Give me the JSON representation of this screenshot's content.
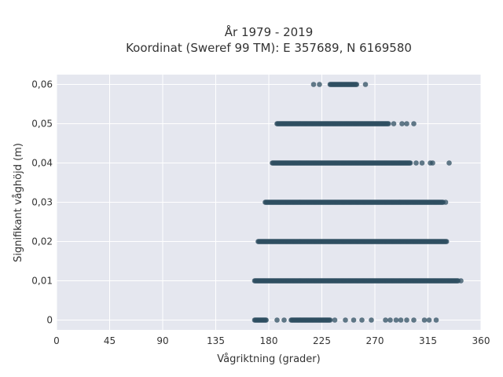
{
  "chart_data": {
    "type": "scatter",
    "title": "År 1979 - 2019",
    "subtitle": "Koordinat (Sweref 99 TM): E 357689, N 6169580",
    "xlabel": "Vågriktning (grader)",
    "ylabel": "Signifikant våghöjd (m)",
    "xlim": [
      0,
      360
    ],
    "ylim": [
      -0.0025,
      0.0625
    ],
    "xticks": [
      0,
      45,
      90,
      135,
      180,
      225,
      270,
      315,
      360
    ],
    "yticks": [
      0,
      0.01,
      0.02,
      0.03,
      0.04,
      0.05,
      0.06
    ],
    "ytick_labels": [
      "0",
      "0,01",
      "0,02",
      "0,03",
      "0,04",
      "0,05",
      "0,06"
    ],
    "grid": true,
    "legend": "none",
    "colors": {
      "point": "#2f4f62",
      "plot_bg": "#e5e7ef",
      "grid": "#ffffff"
    },
    "series": [
      {
        "values_by_height": [
          {
            "y": 0.06,
            "dense": [
              [
                232,
                255
              ]
            ],
            "sparse": [
              218,
              223,
              262
            ]
          },
          {
            "y": 0.05,
            "dense": [
              [
                187,
                282
              ]
            ],
            "sparse": [
              286,
              293,
              297,
              303
            ]
          },
          {
            "y": 0.04,
            "dense": [
              [
                183,
                300
              ]
            ],
            "sparse": [
              305,
              310,
              317,
              319,
              333
            ]
          },
          {
            "y": 0.03,
            "dense": [
              [
                177,
                328
              ]
            ],
            "sparse": [
              330
            ]
          },
          {
            "y": 0.02,
            "dense": [
              [
                171,
                331
              ]
            ],
            "sparse": []
          },
          {
            "y": 0.01,
            "dense": [
              [
                168,
                341
              ]
            ],
            "sparse": [
              343
            ]
          },
          {
            "y": 0.0,
            "dense": [
              [
                168,
                178
              ],
              [
                199,
                232
              ]
            ],
            "sparse": [
              187,
              193,
              236,
              245,
              252,
              259,
              267,
              279,
              283,
              288,
              292,
              297,
              303,
              312,
              316,
              322
            ]
          }
        ]
      }
    ]
  }
}
